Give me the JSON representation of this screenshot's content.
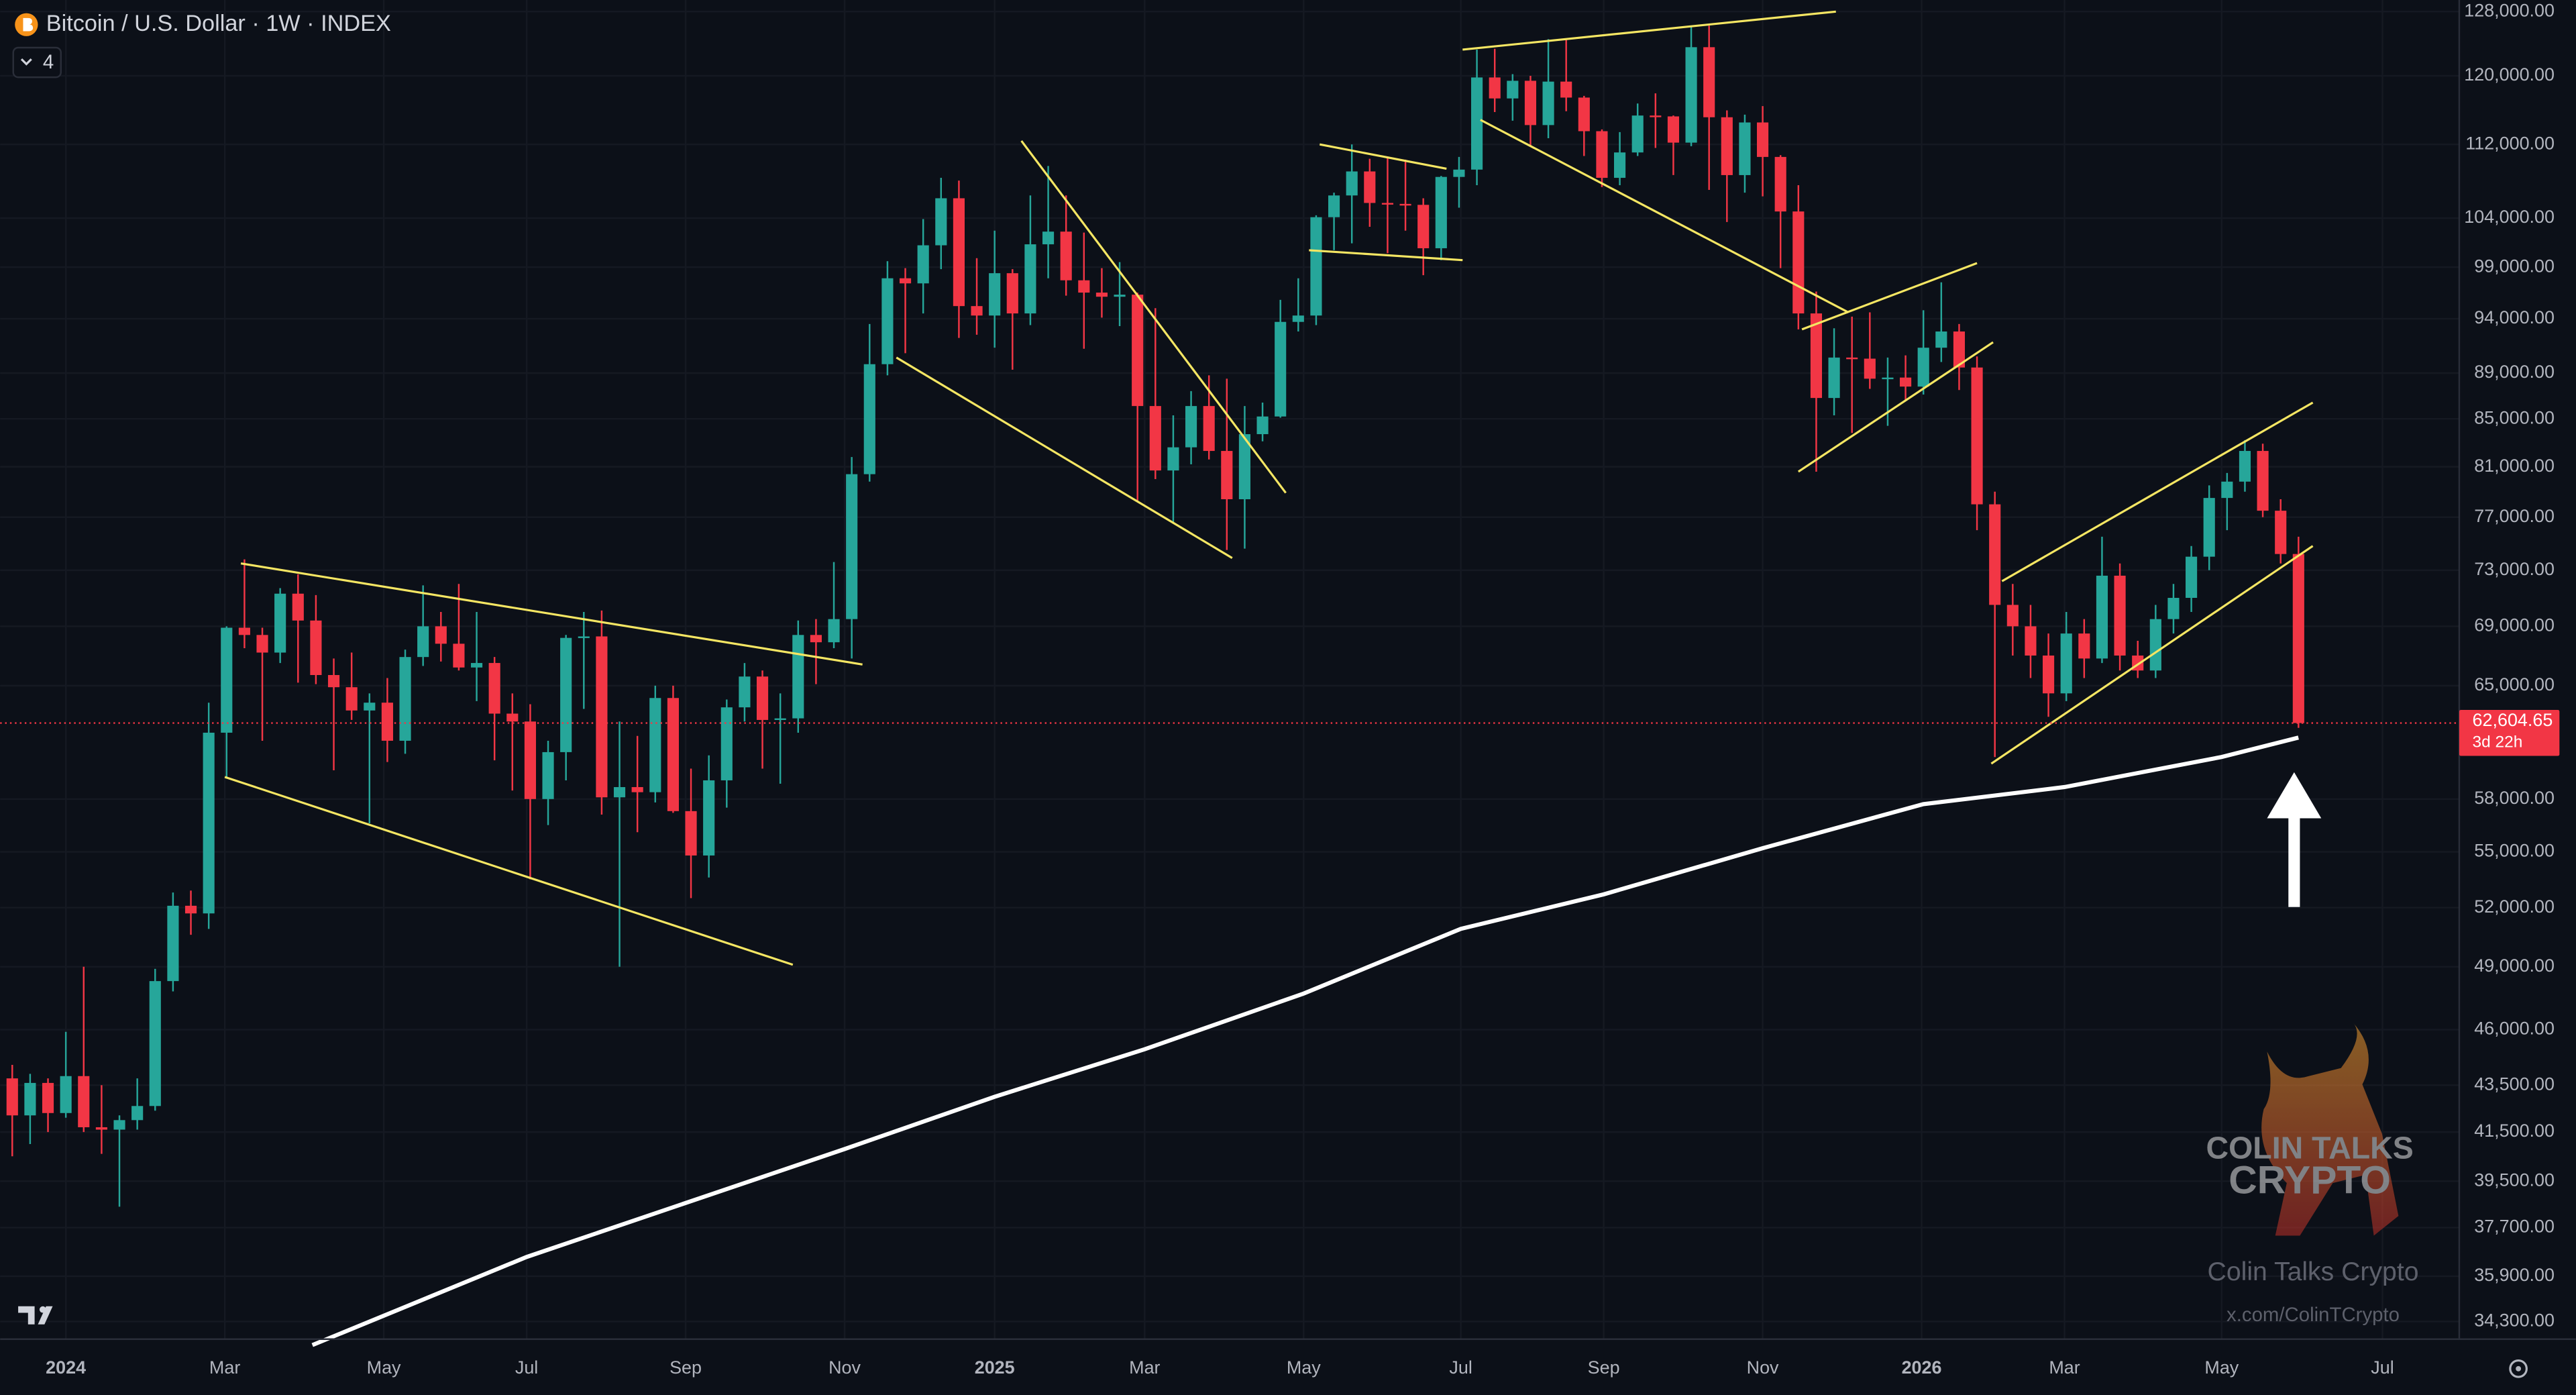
{
  "chart_data": {
    "type": "candlestick",
    "title": "Bitcoin / U.S. Dollar · 1W · INDEX",
    "indicator_count": 4,
    "log_scale": true,
    "grid": true,
    "up_color": "#26a69a",
    "down_color": "#f23645",
    "open": [
      43800,
      42200,
      43600,
      42300,
      43900,
      41700,
      41600,
      42000,
      42600,
      48300,
      52100,
      51700,
      62000,
      68900,
      68400,
      67200,
      71300,
      69400,
      65700,
      64900,
      63400,
      63900,
      61500,
      66900,
      69000,
      67800,
      66200,
      66500,
      63200,
      62700,
      58000,
      60800,
      68200,
      68300,
      58100,
      58700,
      58400,
      64200,
      57300,
      54800,
      59100,
      63600,
      65600,
      62800,
      62900,
      68400,
      67900,
      69500,
      80400,
      89800,
      97900,
      97400,
      101200,
      106100,
      95200,
      94300,
      98400,
      94500,
      101300,
      102600,
      97700,
      96500,
      96100,
      96300,
      86100,
      80700,
      82600,
      86100,
      82300,
      78400,
      83700,
      85200,
      93700,
      94300,
      104100,
      106400,
      109000,
      105600,
      105500,
      105400,
      100900,
      108400,
      109200,
      119800,
      117300,
      119400,
      114200,
      119300,
      117400,
      113500,
      108300,
      111100,
      115300,
      115200,
      112200,
      123500,
      115100,
      108600,
      114500,
      110600,
      104700,
      94500,
      86800,
      90400,
      90300,
      88500,
      88600,
      87800,
      91300,
      92800,
      89500,
      78000,
      70500,
      69000,
      67000,
      64500,
      68500,
      66800,
      72600,
      67000,
      66000,
      69500,
      71000,
      74000,
      78500,
      79800,
      82300,
      77500,
      74200
    ],
    "high": [
      44400,
      44000,
      43800,
      45900,
      49000,
      43500,
      42200,
      43800,
      48900,
      52800,
      52900,
      63900,
      69000,
      73800,
      68900,
      71700,
      72700,
      71200,
      66800,
      67200,
      64500,
      65500,
      67400,
      71900,
      70000,
      72000,
      70000,
      66900,
      64500,
      63800,
      61500,
      68400,
      70000,
      70100,
      62700,
      61800,
      65000,
      65000,
      59800,
      60600,
      64100,
      66500,
      66000,
      64500,
      69400,
      69500,
      73600,
      81800,
      93500,
      99600,
      98900,
      103900,
      108300,
      108000,
      99900,
      102700,
      98800,
      106400,
      109600,
      106400,
      102500,
      98900,
      99500,
      96500,
      95000,
      85300,
      87400,
      88800,
      88500,
      86100,
      86400,
      95800,
      97900,
      104300,
      106700,
      112000,
      110400,
      110600,
      110300,
      106100,
      108500,
      110600,
      123200,
      123300,
      120200,
      120000,
      124500,
      124400,
      117600,
      113700,
      113400,
      116700,
      117900,
      115300,
      126200,
      126200,
      115900,
      115400,
      116400,
      110800,
      107500,
      96600,
      93100,
      94200,
      94600,
      90400,
      90600,
      94800,
      97500,
      93500,
      90500,
      79000,
      72000,
      70500,
      68500,
      70000,
      69500,
      75500,
      73500,
      68000,
      70500,
      72000,
      74800,
      79500,
      80500,
      83200,
      82900,
      78400,
      75500
    ],
    "low": [
      40500,
      41000,
      41500,
      42100,
      41500,
      40600,
      38500,
      41600,
      42400,
      47800,
      50600,
      50900,
      59200,
      67500,
      61500,
      66500,
      65200,
      65100,
      59700,
      62800,
      56600,
      60200,
      60700,
      66300,
      66600,
      66000,
      64000,
      60300,
      58500,
      53500,
      56500,
      59100,
      63500,
      57100,
      49000,
      56100,
      57800,
      57200,
      52500,
      53600,
      57500,
      62700,
      59800,
      58900,
      62000,
      65100,
      67500,
      66800,
      79800,
      88800,
      90800,
      94500,
      98800,
      92200,
      92500,
      91300,
      89300,
      93400,
      97900,
      96200,
      91200,
      94100,
      93300,
      78300,
      80000,
      76600,
      81200,
      81600,
      74500,
      74600,
      83100,
      85100,
      92800,
      93400,
      100700,
      101400,
      103100,
      100400,
      102700,
      98200,
      99700,
      105100,
      107500,
      115700,
      114700,
      111900,
      112700,
      115800,
      110700,
      107300,
      107500,
      110700,
      111600,
      108600,
      111800,
      107000,
      103600,
      106700,
      106300,
      98900,
      93000,
      80600,
      85300,
      83800,
      87600,
      84400,
      86600,
      87100,
      90000,
      87500,
      76000,
      60500,
      67000,
      65500,
      63000,
      64000,
      65500,
      66500,
      66000,
      65500,
      65500,
      68500,
      70000,
      73000,
      76000,
      79000,
      77000,
      73500,
      62300
    ],
    "close": [
      42200,
      43600,
      42300,
      43900,
      41700,
      41600,
      42000,
      42600,
      48300,
      52100,
      51700,
      62000,
      68900,
      68400,
      67200,
      71300,
      69400,
      65700,
      64900,
      63400,
      63900,
      61500,
      66900,
      69000,
      67800,
      66200,
      66500,
      63200,
      62700,
      58000,
      60800,
      68200,
      68300,
      58100,
      58700,
      58400,
      64200,
      57300,
      54800,
      59100,
      63600,
      65600,
      62800,
      62900,
      68400,
      67900,
      69500,
      80400,
      89800,
      97900,
      97400,
      101200,
      106100,
      95200,
      94300,
      98400,
      94500,
      101300,
      102600,
      97700,
      96500,
      96100,
      96300,
      86100,
      80700,
      82600,
      86100,
      82300,
      78400,
      83700,
      85200,
      93700,
      94300,
      104100,
      106400,
      109000,
      105600,
      105500,
      105400,
      100900,
      108400,
      109200,
      119800,
      117300,
      119400,
      114200,
      119300,
      117400,
      113500,
      108300,
      111100,
      115300,
      115200,
      112200,
      123500,
      115100,
      108600,
      114500,
      110600,
      104700,
      94500,
      86800,
      90400,
      90300,
      88500,
      88600,
      87800,
      91300,
      92800,
      89500,
      78000,
      70500,
      69000,
      67000,
      64500,
      68500,
      66800,
      72600,
      67000,
      66000,
      69500,
      71000,
      74000,
      78500,
      79800,
      82300,
      77500,
      74200,
      62604.65
    ],
    "moving_average": {
      "color": "#ffffff",
      "x": [
        16.8,
        28.8,
        46.6,
        55,
        63.4,
        72.3,
        81.1,
        89.1,
        98,
        107,
        114.9,
        123.7,
        128
      ],
      "values": [
        33500,
        36600,
        40800,
        43000,
        45100,
        47700,
        50900,
        52700,
        55200,
        57700,
        58700,
        60500,
        61700
      ]
    },
    "trendline_color": "#f5e663",
    "trendlines": [
      {
        "x": [
          12.8,
          47.6
        ],
        "values": [
          73500,
          66400
        ]
      },
      {
        "x": [
          11.9,
          43.7
        ],
        "values": [
          59300,
          49100
        ]
      },
      {
        "x": [
          49.5,
          68.3
        ],
        "values": [
          90400,
          73900
        ]
      },
      {
        "x": [
          56.5,
          71.3
        ],
        "values": [
          112400,
          78900
        ]
      },
      {
        "x": [
          73.2,
          80.3
        ],
        "values": [
          112000,
          109300
        ]
      },
      {
        "x": [
          72.6,
          81.2
        ],
        "values": [
          100700,
          99700
        ]
      },
      {
        "x": [
          81.2,
          102.1
        ],
        "values": [
          123200,
          128000
        ]
      },
      {
        "x": [
          82.2,
          102.8
        ],
        "values": [
          114800,
          94600
        ]
      },
      {
        "x": [
          100.2,
          110
        ],
        "values": [
          93000,
          99400
        ]
      },
      {
        "x": [
          100,
          110.9
        ],
        "values": [
          80600,
          91800
        ]
      },
      {
        "x": [
          111.4,
          128.8
        ],
        "values": [
          72200,
          86400
        ]
      },
      {
        "x": [
          110.8,
          128.8
        ],
        "values": [
          60100,
          74800
        ]
      }
    ],
    "last_price": {
      "value": 62604.65,
      "label": "62,604.65"
    },
    "countdown": "3d 22h",
    "xlim": [
      -0.68,
      137
    ],
    "xticks": [
      {
        "value": 3,
        "label": "2024"
      },
      {
        "value": 11.9,
        "label": "Mar"
      },
      {
        "value": 20.8,
        "label": "May"
      },
      {
        "value": 28.8,
        "label": "Jul"
      },
      {
        "value": 37.7,
        "label": "Sep"
      },
      {
        "value": 46.6,
        "label": "Nov"
      },
      {
        "value": 55,
        "label": "2025"
      },
      {
        "value": 63.4,
        "label": "Mar"
      },
      {
        "value": 72.3,
        "label": "May"
      },
      {
        "value": 81.1,
        "label": "Jul"
      },
      {
        "value": 89.1,
        "label": "Sep"
      },
      {
        "value": 98,
        "label": "Nov"
      },
      {
        "value": 106.9,
        "label": "2026"
      },
      {
        "value": 114.9,
        "label": "Mar"
      },
      {
        "value": 123.7,
        "label": "May"
      },
      {
        "value": 132.7,
        "label": "Jul"
      }
    ],
    "ylim": [
      33700,
      129500
    ],
    "yticks": [
      {
        "value": 128000,
        "label": "128,000.00"
      },
      {
        "value": 120000,
        "label": "120,000.00"
      },
      {
        "value": 112000,
        "label": "112,000.00"
      },
      {
        "value": 104000,
        "label": "104,000.00"
      },
      {
        "value": 99000,
        "label": "99,000.00"
      },
      {
        "value": 94000,
        "label": "94,000.00"
      },
      {
        "value": 89000,
        "label": "89,000.00"
      },
      {
        "value": 85000,
        "label": "85,000.00"
      },
      {
        "value": 81000,
        "label": "81,000.00"
      },
      {
        "value": 77000,
        "label": "77,000.00"
      },
      {
        "value": 73000,
        "label": "73,000.00"
      },
      {
        "value": 69000,
        "label": "69,000.00"
      },
      {
        "value": 65000,
        "label": "65,000.00"
      },
      {
        "value": 58000,
        "label": "58,000.00"
      },
      {
        "value": 55000,
        "label": "55,000.00"
      },
      {
        "value": 52000,
        "label": "52,000.00"
      },
      {
        "value": 49000,
        "label": "49,000.00"
      },
      {
        "value": 46000,
        "label": "46,000.00"
      },
      {
        "value": 43500,
        "label": "43,500.00"
      },
      {
        "value": 41500,
        "label": "41,500.00"
      },
      {
        "value": 39500,
        "label": "39,500.00"
      },
      {
        "value": 37700,
        "label": "37,700.00"
      },
      {
        "value": 35900,
        "label": "35,900.00"
      },
      {
        "value": 34300,
        "label": "34,300.00"
      }
    ],
    "watermark": {
      "logo_line1": "COLIN TALKS",
      "logo_line2": "CRYPTO",
      "name": "Colin Talks Crypto",
      "url": "x.com/ColinTCrypto"
    }
  }
}
